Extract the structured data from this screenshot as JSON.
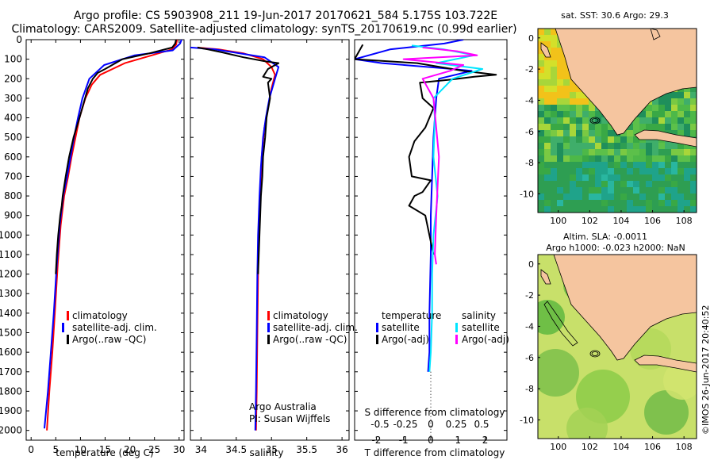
{
  "header": {
    "line1": "Argo profile: CS 5903908_211 19-Jun-2017 20170621_584 5.175S 103.722E",
    "line2": "Climatology: CARS2009. Satellite-adjusted climatology: synTS_20170619.nc (0.99d earlier)"
  },
  "colors": {
    "climatology": "#ff0000",
    "satellite": "#0000ff",
    "argo": "#000000",
    "cyan": "#00e5ff",
    "magenta": "#ff00ff",
    "land": "#f5c59f"
  },
  "legend_main": [
    "climatology",
    "satellite-adj. clim.",
    "Argo(..raw -QC)"
  ],
  "legend_diff": {
    "temp_head": "temperature",
    "sal_head": "salinity",
    "temp_items": [
      "satellite",
      "Argo(-adj)"
    ],
    "sal_items": [
      "satellite",
      "Argo(-adj)"
    ]
  },
  "credit": {
    "line1": "Argo Australia",
    "line2": "PI: Susan Wijffels"
  },
  "maps": {
    "sst_title": "sat. SST: 30.6 Argo: 29.3",
    "sla_title1": "Altim. SLA: -0.0011",
    "sla_title2": "Argo h1000: -0.023 h2000: NaN",
    "lon_ticks": [
      "100",
      "102",
      "104",
      "106",
      "108"
    ],
    "lat_ticks": [
      "0",
      "-2",
      "-4",
      "-6",
      "-8",
      "-10"
    ]
  },
  "stamp": "©IMOS 26-Jun-2017 20:40:52",
  "chart_data": [
    {
      "type": "line",
      "title": "",
      "xlabel": "temperature (deg C)",
      "ylabel": "",
      "xlim": [
        -1,
        31
      ],
      "ylim": [
        2050,
        0
      ],
      "xticks": [
        "0",
        "5",
        "10",
        "15",
        "20",
        "25",
        "30"
      ],
      "yticks": [
        "0",
        "100",
        "200",
        "300",
        "400",
        "500",
        "600",
        "700",
        "800",
        "900",
        "1000",
        "1100",
        "1200",
        "1300",
        "1400",
        "1500",
        "1600",
        "1700",
        "1800",
        "1900",
        "2000"
      ],
      "series": [
        {
          "name": "climatology",
          "color": "#ff0000",
          "x": [
            29.6,
            29.4,
            28.5,
            24.5,
            19,
            14,
            12.3,
            11,
            9.8,
            9,
            8.2,
            7.5,
            6.7,
            6,
            5.4,
            4.8,
            4.3,
            3.7,
            3.2
          ],
          "y": [
            0,
            25,
            50,
            80,
            120,
            180,
            230,
            300,
            400,
            500,
            600,
            700,
            800,
            950,
            1150,
            1400,
            1600,
            1800,
            2000
          ]
        },
        {
          "name": "satellite-adj. clim.",
          "color": "#0000ff",
          "x": [
            30.5,
            30.2,
            28.7,
            21,
            14.8,
            11.8,
            10.4,
            9.5,
            8.7,
            8,
            7.3,
            6.5,
            5.8,
            5.2,
            4.6,
            4,
            3.4,
            2.7
          ],
          "y": [
            0,
            20,
            55,
            80,
            130,
            200,
            300,
            400,
            500,
            600,
            700,
            800,
            950,
            1150,
            1400,
            1600,
            1800,
            1990
          ]
        },
        {
          "name": "Argo(..raw -QC)",
          "color": "#000000",
          "x": [
            29.4,
            29.2,
            28.6,
            24,
            18.5,
            15,
            13.5,
            12.5,
            11.5,
            9.8,
            8.6,
            7.7,
            7,
            6.4,
            6.2,
            5.9,
            5.5,
            5.2,
            5
          ],
          "y": [
            0,
            20,
            40,
            70,
            100,
            150,
            170,
            200,
            250,
            400,
            500,
            600,
            700,
            800,
            850,
            900,
            1000,
            1100,
            1200
          ]
        }
      ]
    },
    {
      "type": "line",
      "xlabel": "salinity",
      "xlim": [
        33.85,
        36.1
      ],
      "ylim": [
        2050,
        0
      ],
      "xticks": [
        "34",
        "34.5",
        "35",
        "35.5",
        "36"
      ],
      "series": [
        {
          "name": "climatology",
          "color": "#ff0000",
          "x": [
            33.95,
            34.25,
            34.6,
            34.88,
            35.0,
            35.05,
            35.0,
            34.95,
            34.9,
            34.86,
            34.84,
            34.82,
            34.81,
            34.8,
            34.79,
            34.78
          ],
          "y": [
            40,
            50,
            70,
            100,
            140,
            180,
            250,
            350,
            450,
            600,
            800,
            1000,
            1200,
            1500,
            1800,
            2000
          ]
        },
        {
          "name": "satellite-adj. clim.",
          "color": "#0000ff",
          "x": [
            33.85,
            34.2,
            34.9,
            35.1,
            35.05,
            34.97,
            34.92,
            34.88,
            34.85,
            34.83,
            34.81,
            34.8,
            34.79,
            34.78,
            34.77
          ],
          "y": [
            40,
            50,
            90,
            140,
            200,
            300,
            400,
            500,
            650,
            800,
            1000,
            1200,
            1500,
            1800,
            2000
          ]
        },
        {
          "name": "Argo(..raw -QC)",
          "color": "#000000",
          "x": [
            33.95,
            34.1,
            34.3,
            34.6,
            34.9,
            35.1,
            34.95,
            34.88,
            35.0,
            34.95,
            34.98,
            34.93,
            34.91,
            34.88,
            34.87,
            34.85,
            34.84,
            34.83,
            34.81
          ],
          "y": [
            40,
            50,
            65,
            90,
            110,
            120,
            150,
            190,
            200,
            220,
            300,
            400,
            500,
            600,
            700,
            800,
            900,
            1000,
            1200
          ]
        }
      ]
    },
    {
      "type": "line",
      "xlabel_top": "S difference from climatology",
      "xlabel": "T difference from climatology",
      "xlim": [
        -2.8,
        2.8
      ],
      "ylim": [
        2050,
        0
      ],
      "xticks_top": [
        "-0.5",
        "-0.25",
        "0",
        "0.25",
        "0.5"
      ],
      "xticks": [
        "-2",
        "-1",
        "0",
        "1",
        "2"
      ],
      "series": [
        {
          "name": "temperature satellite",
          "color": "#0000ff",
          "x": [
            1.2,
            0.5,
            -1.5,
            -2.8,
            -1.8,
            0.8,
            1.5,
            0.3,
            0.2,
            0.1,
            0.05,
            0.0,
            0.0,
            -0.05,
            -0.05,
            -0.1
          ],
          "y": [
            0,
            20,
            50,
            100,
            120,
            150,
            160,
            200,
            300,
            500,
            700,
            900,
            1100,
            1400,
            1600,
            1700
          ]
        },
        {
          "name": "temperature Argo(-adj)",
          "color": "#000000",
          "x": [
            -2.5,
            -2.8,
            -0.5,
            1.2,
            2.4,
            1.6,
            0.7,
            -0.4,
            -0.3,
            0.1,
            -0.2,
            -0.6,
            -0.8,
            -0.7,
            0.0,
            -0.3,
            -0.6,
            -0.8,
            -0.2,
            0.1
          ],
          "y": [
            25,
            100,
            120,
            160,
            180,
            190,
            205,
            220,
            300,
            350,
            450,
            520,
            600,
            700,
            720,
            780,
            800,
            850,
            900,
            1100
          ]
        },
        {
          "name": "salinity satellite",
          "color": "#00e5ff",
          "x": [
            -0.7,
            0.5,
            1.6,
            0.2,
            1.9,
            0.8,
            0.1,
            0.15,
            0.1,
            0.25,
            0.1,
            0.05,
            0.05,
            0.0,
            -0.05
          ],
          "y": [
            30,
            50,
            80,
            120,
            150,
            200,
            300,
            400,
            600,
            800,
            1000,
            1200,
            1400,
            1600,
            1700
          ]
        },
        {
          "name": "salinity Argo(-adj)",
          "color": "#ff00ff",
          "x": [
            -0.3,
            1.0,
            1.7,
            -1.0,
            1.2,
            0.7,
            -0.3,
            0.1,
            0.3,
            0.2,
            0.15,
            0.2
          ],
          "y": [
            40,
            60,
            80,
            100,
            130,
            160,
            200,
            300,
            600,
            900,
            1100,
            1150
          ]
        }
      ]
    }
  ]
}
